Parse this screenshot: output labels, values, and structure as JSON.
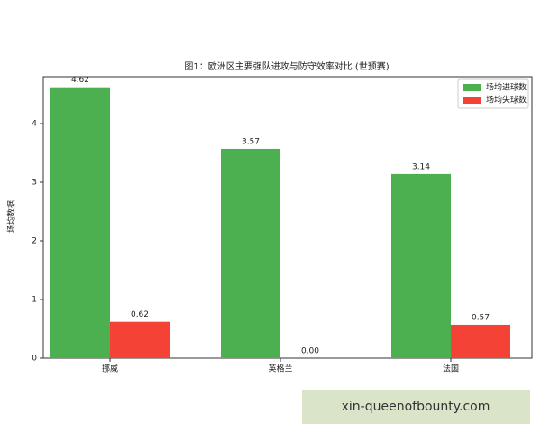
{
  "chart_data": {
    "type": "bar",
    "title": "图1：欧洲区主要强队进攻与防守效率对比 (世预赛)",
    "y_label": "场均数据",
    "categories": [
      "挪威",
      "英格兰",
      "法国"
    ],
    "series": [
      {
        "name": "场均进球数",
        "color": "#4caf50",
        "values": [
          4.62,
          3.57,
          3.14
        ],
        "value_labels": [
          "4.62",
          "3.57",
          "3.14"
        ]
      },
      {
        "name": "场均失球数",
        "color": "#f44336",
        "values": [
          0.62,
          0,
          0.57
        ],
        "value_labels": [
          "0.62",
          "0.00",
          "0.57"
        ]
      }
    ],
    "ylim": [
      0,
      4.8
    ],
    "yticks": [
      0,
      1,
      2,
      3,
      4
    ],
    "legend": "upper right"
  },
  "watermark": "xin-queenofbounty.com"
}
